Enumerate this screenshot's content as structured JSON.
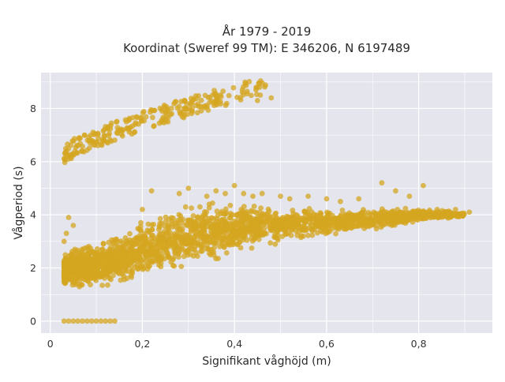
{
  "chart_data": {
    "type": "scatter",
    "title": "År 1979 - 2019",
    "subtitle": "Koordinat (Sweref 99 TM): E 346206, N 6197489",
    "xlabel": "Signifikant våghöjd (m)",
    "ylabel": "Vågperiod (s)",
    "xlim": [
      -0.02,
      0.96
    ],
    "ylim": [
      -0.45,
      9.35
    ],
    "x_ticks": [
      0,
      0.2,
      0.4,
      0.6,
      0.8
    ],
    "x_tick_labels": [
      "0",
      "0,2",
      "0,4",
      "0,6",
      "0,8"
    ],
    "y_ticks": [
      0,
      2,
      4,
      6,
      8
    ],
    "y_tick_labels": [
      "0",
      "2",
      "4",
      "6",
      "8"
    ],
    "grid": true,
    "legend": "none",
    "series": [
      {
        "marker_color": "#d4a520",
        "clusters": [
          {
            "kind": "upper-branch",
            "x": [
              0.03,
              0.05,
              0.07,
              0.09,
              0.11,
              0.13,
              0.15,
              0.17,
              0.19,
              0.21,
              0.23,
              0.25,
              0.27,
              0.29,
              0.31,
              0.35,
              0.39,
              0.43,
              0.47
            ],
            "y_center": [
              6.2,
              6.5,
              6.7,
              6.8,
              6.9,
              7.1,
              7.2,
              7.3,
              7.5,
              7.6,
              7.7,
              7.8,
              7.9,
              8.0,
              8.1,
              8.3,
              8.5,
              8.7,
              8.9
            ],
            "y_spread": 0.35
          },
          {
            "kind": "main-cloud",
            "x": [
              0.03,
              0.06,
              0.1,
              0.15,
              0.2,
              0.25,
              0.3,
              0.35,
              0.4,
              0.45,
              0.5,
              0.55,
              0.6,
              0.65,
              0.7,
              0.75,
              0.8,
              0.85,
              0.9
            ],
            "y_low": [
              1.2,
              1.1,
              1.1,
              1.2,
              1.4,
              1.6,
              1.9,
              2.1,
              2.4,
              2.7,
              2.8,
              3.0,
              3.1,
              3.3,
              3.4,
              3.5,
              3.7,
              3.8,
              3.9
            ],
            "y_high": [
              2.6,
              3.0,
              3.1,
              3.4,
              3.9,
              4.3,
              4.5,
              4.6,
              4.6,
              4.5,
              4.4,
              4.4,
              4.3,
              4.3,
              4.3,
              4.3,
              4.3,
              4.2,
              4.1
            ]
          },
          {
            "kind": "zero-row",
            "x": [
              0.03,
              0.04,
              0.05,
              0.06,
              0.07,
              0.08,
              0.09,
              0.1,
              0.11,
              0.12,
              0.13,
              0.14
            ],
            "y": [
              0,
              0,
              0,
              0,
              0,
              0,
              0,
              0,
              0,
              0,
              0,
              0
            ]
          },
          {
            "kind": "outliers",
            "x": [
              0.04,
              0.03,
              0.05,
              0.035,
              0.2,
              0.22,
              0.28,
              0.3,
              0.34,
              0.36,
              0.38,
              0.4,
              0.42,
              0.44,
              0.46,
              0.5,
              0.52,
              0.56,
              0.6,
              0.63,
              0.67,
              0.72,
              0.75,
              0.78,
              0.81,
              0.84,
              0.86,
              0.88,
              0.91,
              0.48,
              0.45
            ],
            "y": [
              3.9,
              3.0,
              3.6,
              3.3,
              4.2,
              4.9,
              4.8,
              5.0,
              4.7,
              4.9,
              4.8,
              5.1,
              4.8,
              4.7,
              4.8,
              4.7,
              4.6,
              4.7,
              4.6,
              4.5,
              4.6,
              5.2,
              4.9,
              4.7,
              5.1,
              4.2,
              4.0,
              4.2,
              4.1,
              8.4,
              8.3
            ]
          }
        ]
      }
    ]
  }
}
